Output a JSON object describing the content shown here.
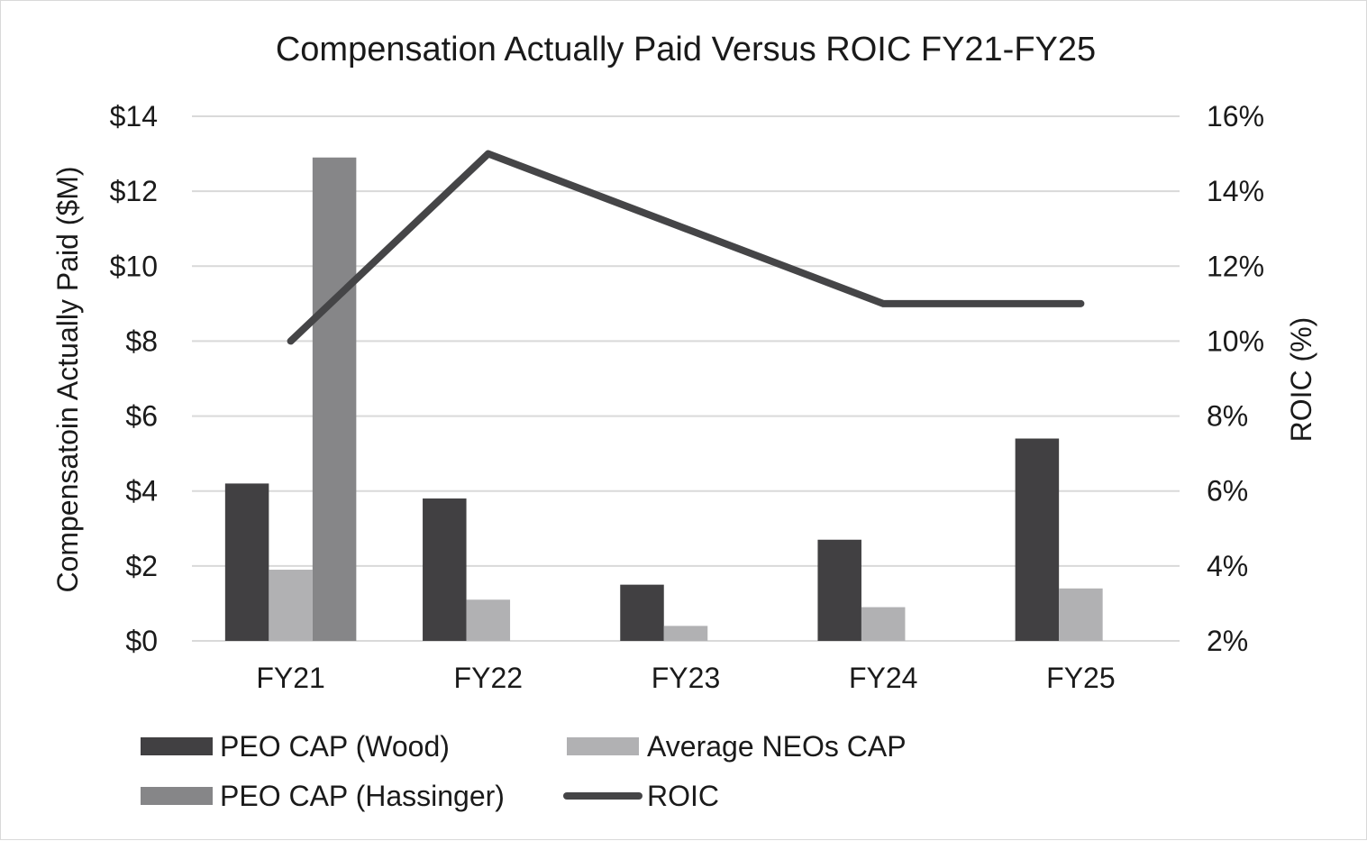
{
  "chart_data": {
    "type": "bar",
    "title": "Compensation Actually Paid Versus ROIC FY21-FY25",
    "categories": [
      "FY21",
      "FY22",
      "FY23",
      "FY24",
      "FY25"
    ],
    "ylabel": "Compensatoin Actually Paid ($M)",
    "y2label": "ROIC (%)",
    "ylim": [
      0,
      14
    ],
    "y2lim": [
      2,
      16
    ],
    "y_ticks": [
      "$0",
      "$2",
      "$4",
      "$6",
      "$8",
      "$10",
      "$12",
      "$14"
    ],
    "y2_ticks": [
      "2%",
      "4%",
      "6%",
      "8%",
      "10%",
      "12%",
      "14%",
      "16%"
    ],
    "grid": true,
    "legend_position": "bottom",
    "series": [
      {
        "name": "PEO CAP (Wood)",
        "kind": "bar",
        "axis": "left",
        "color": "#414042",
        "values": [
          4.2,
          3.8,
          1.5,
          2.7,
          5.4
        ]
      },
      {
        "name": "Average NEOs CAP",
        "kind": "bar",
        "axis": "left",
        "color": "#b1b1b3",
        "values": [
          1.9,
          1.1,
          0.4,
          0.9,
          1.4
        ]
      },
      {
        "name": "PEO CAP (Hassinger)",
        "kind": "bar",
        "axis": "left",
        "color": "#868688",
        "values": [
          12.9,
          null,
          null,
          null,
          null
        ]
      },
      {
        "name": "ROIC",
        "kind": "line",
        "axis": "right",
        "color": "#454547",
        "values": [
          10,
          15,
          13,
          11,
          11
        ]
      }
    ]
  }
}
